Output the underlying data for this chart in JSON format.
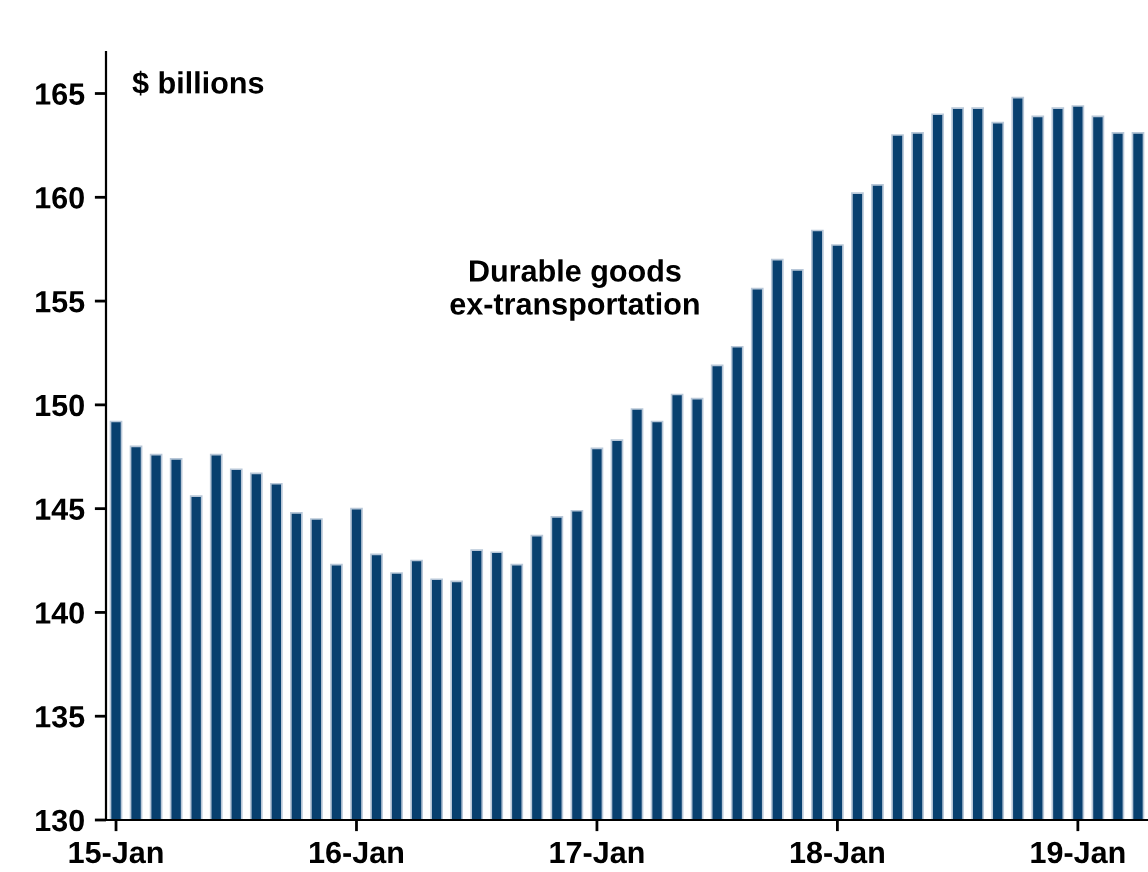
{
  "chart_data": {
    "type": "bar",
    "ylabel": "$ billions",
    "annotations": [
      "Durable goods\nex-transportation"
    ],
    "categories": [
      "15-Jan",
      null,
      null,
      null,
      null,
      null,
      null,
      null,
      null,
      null,
      null,
      null,
      "16-Jan",
      null,
      null,
      null,
      null,
      null,
      null,
      null,
      null,
      null,
      null,
      null,
      "17-Jan",
      null,
      null,
      null,
      null,
      null,
      null,
      null,
      null,
      null,
      null,
      null,
      "18-Jan",
      null,
      null,
      null,
      null,
      null,
      null,
      null,
      null,
      null,
      null,
      null,
      "19-Jan",
      null,
      null,
      null
    ],
    "values": [
      149.2,
      148.0,
      147.6,
      147.4,
      145.6,
      147.6,
      146.9,
      146.7,
      146.2,
      144.8,
      144.5,
      142.3,
      145.0,
      142.8,
      141.9,
      142.5,
      141.6,
      141.5,
      143.0,
      142.9,
      142.3,
      143.7,
      144.6,
      144.9,
      147.9,
      148.3,
      149.8,
      149.2,
      150.5,
      150.3,
      151.9,
      152.8,
      155.6,
      157.0,
      156.5,
      158.4,
      157.7,
      160.2,
      160.6,
      163.0,
      163.1,
      164.0,
      164.3,
      164.3,
      163.6,
      164.8,
      163.9,
      164.3,
      164.4,
      163.9,
      163.1,
      163.1
    ],
    "color": "#08406f",
    "ylim": [
      130,
      167
    ],
    "yticks": [
      130,
      135,
      140,
      145,
      150,
      155,
      160,
      165
    ],
    "grid": false,
    "legend": false
  }
}
